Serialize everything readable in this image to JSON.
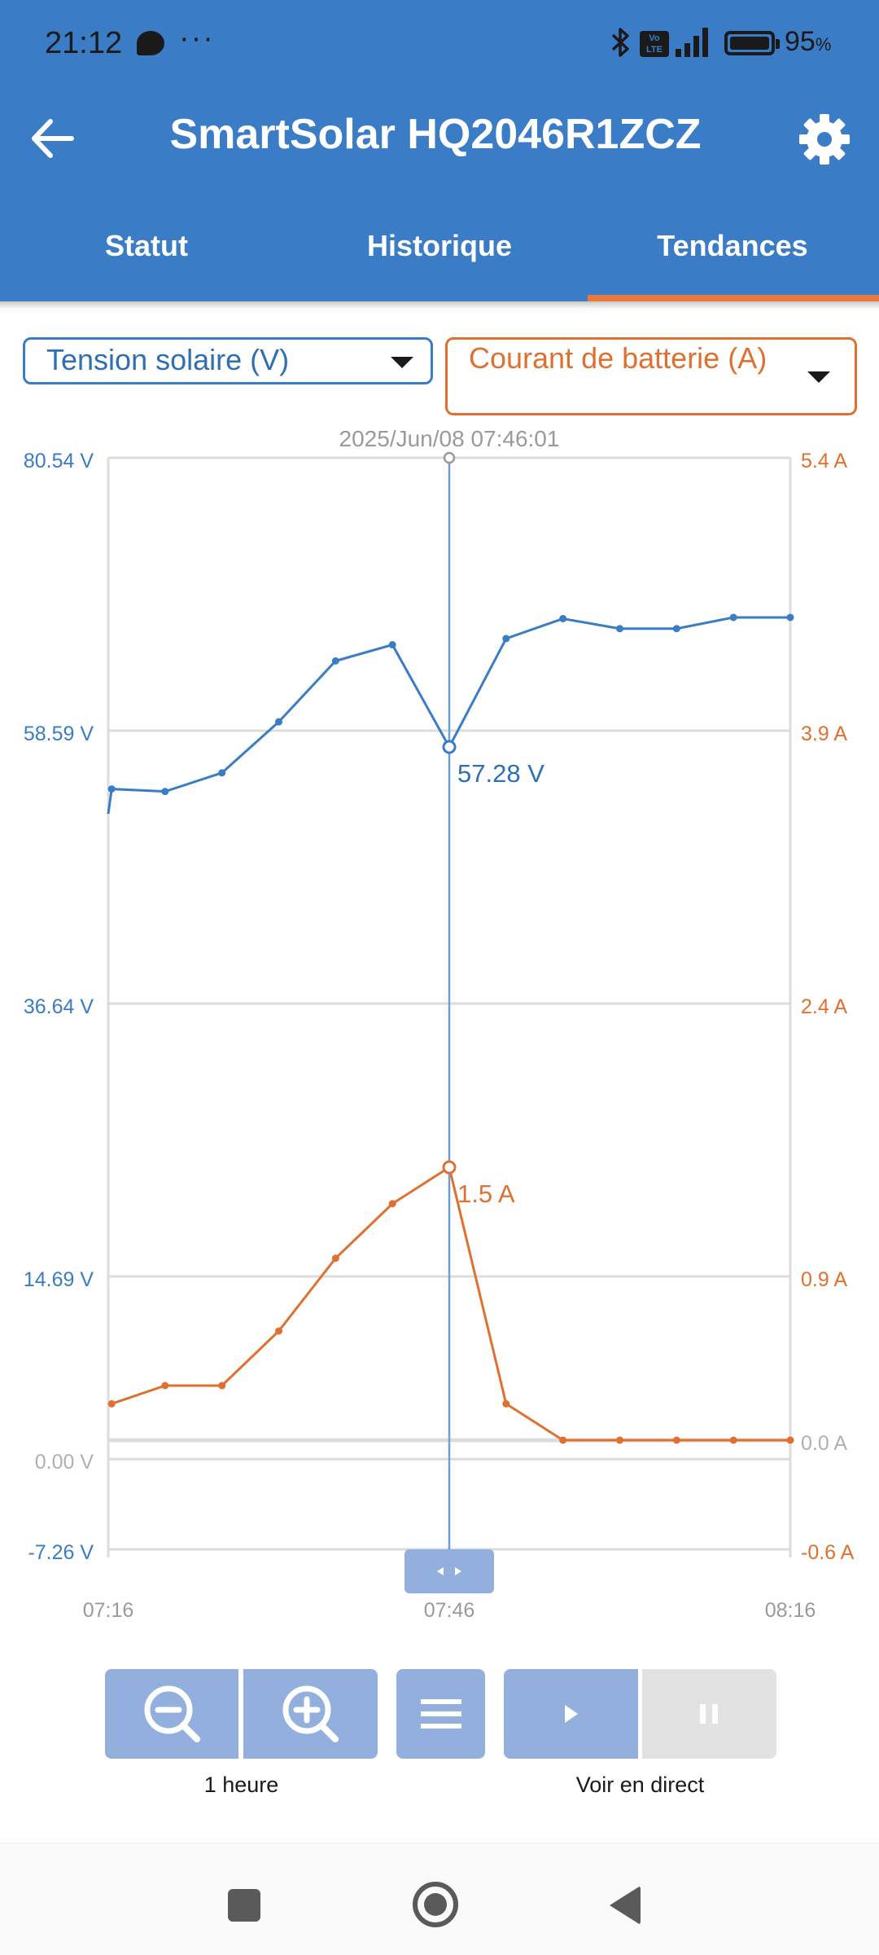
{
  "status_bar": {
    "time": "21:12",
    "dots": "···",
    "volte": "Vo LTE",
    "battery_percent": "95",
    "battery_unit": "%",
    "battery_level": 0.95,
    "icons": [
      "message-icon",
      "bluetooth-icon",
      "volte-icon",
      "signal-icon",
      "battery-icon"
    ]
  },
  "header": {
    "title": "SmartSolar HQ2046R1ZCZ",
    "icons": [
      "back-arrow-icon",
      "gear-icon"
    ],
    "color": "#3a7cc6"
  },
  "tabs": [
    {
      "label": "Statut",
      "active": false
    },
    {
      "label": "Historique",
      "active": false
    },
    {
      "label": "Tendances",
      "active": true
    }
  ],
  "selectors": {
    "left": {
      "value": "Tension solaire (V)",
      "color": "#3a7cc6"
    },
    "right": {
      "value": "Courant de batterie (A)",
      "color": "#e0702f"
    }
  },
  "chart_data": {
    "type": "line",
    "cursor": {
      "timestamp": "2025/Jun/08 07:46:01",
      "x": "07:46",
      "voltage_label": "57.28 V",
      "current_label": "1.5 A"
    },
    "x_ticks": [
      "07:16",
      "07:46",
      "08:16"
    ],
    "x_range_minutes": [
      0,
      60
    ],
    "left_axis": {
      "ticks": [
        "80.54 V",
        "58.59 V",
        "36.64 V",
        "14.69 V",
        "0.00 V",
        "-7.26 V"
      ],
      "tick_values": [
        80.54,
        58.59,
        36.64,
        14.69,
        0.0,
        -7.26
      ],
      "range": [
        -7.26,
        80.54
      ],
      "color": "#3a7cc6"
    },
    "right_axis": {
      "ticks": [
        "5.4 A",
        "3.9 A",
        "2.4 A",
        "0.9 A",
        "0.0 A",
        "-0.6 A"
      ],
      "tick_values": [
        5.4,
        3.9,
        2.4,
        0.9,
        0.0,
        -0.6
      ],
      "range": [
        -0.6,
        5.4
      ],
      "color": "#e0702f"
    },
    "series": [
      {
        "axis": "left",
        "color": "#3a7cc6",
        "points": [
          [
            0,
            51.9
          ],
          [
            0.3,
            53.9
          ],
          [
            5,
            53.7
          ],
          [
            10,
            55.2
          ],
          [
            15,
            59.3
          ],
          [
            20,
            64.2
          ],
          [
            25,
            65.5
          ],
          [
            30,
            57.28
          ],
          [
            35,
            66.0
          ],
          [
            40,
            67.6
          ],
          [
            45,
            66.8
          ],
          [
            50,
            66.8
          ],
          [
            55,
            67.7
          ],
          [
            60,
            67.7
          ]
        ]
      },
      {
        "axis": "right",
        "color": "#e0702f",
        "points": [
          [
            0.3,
            0.2
          ],
          [
            5,
            0.3
          ],
          [
            10,
            0.3
          ],
          [
            15,
            0.6
          ],
          [
            20,
            1.0
          ],
          [
            25,
            1.3
          ],
          [
            30,
            1.5
          ],
          [
            35,
            0.2
          ],
          [
            40,
            0.0
          ],
          [
            45,
            0.0
          ],
          [
            50,
            0.0
          ],
          [
            55,
            0.0
          ],
          [
            60,
            0.0
          ]
        ]
      }
    ],
    "grid": true
  },
  "controls": {
    "zoom_label": "1 heure",
    "live_label": "Voir en direct",
    "buttons": [
      "zoom-out-button",
      "zoom-in-button",
      "menu-button",
      "play-button",
      "pause-button"
    ]
  },
  "navbar": {
    "icons": [
      "recents-icon",
      "home-icon",
      "back-icon"
    ]
  }
}
